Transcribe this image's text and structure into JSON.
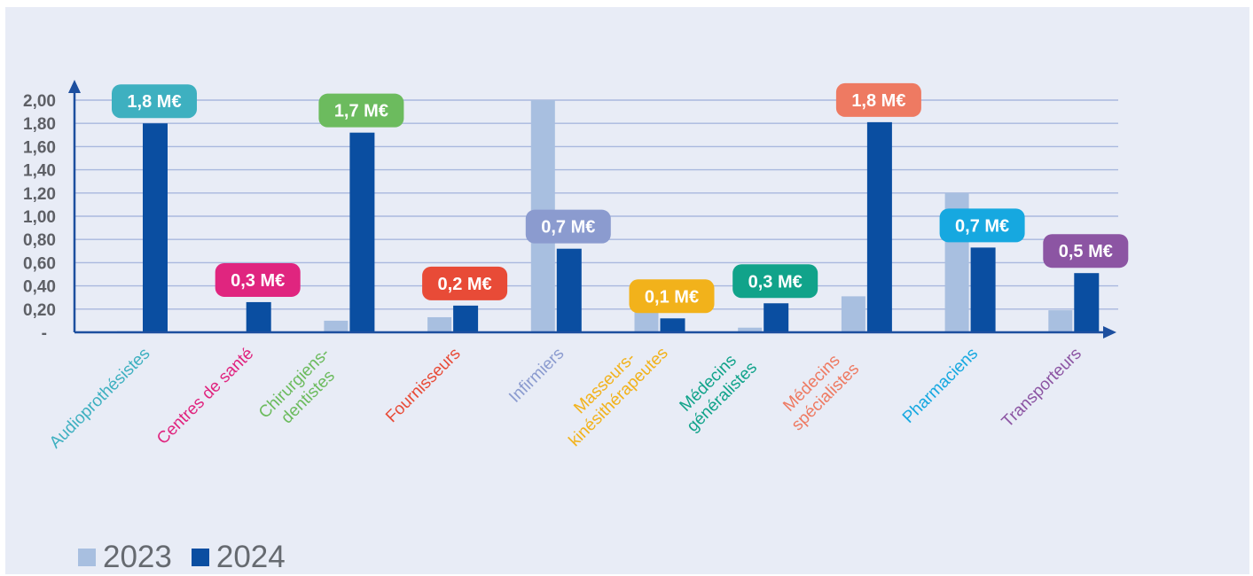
{
  "chart_data": {
    "type": "bar",
    "categories": [
      "Audioprothésistes",
      "Centres de santé",
      "Chirurgiens-dentistes",
      "Fournisseurs",
      "Infirmiers",
      "Masseurs-kinésithérapeutes",
      "Médecins généralistes",
      "Médecins spécialistes",
      "Pharmaciens",
      "Transporteurs"
    ],
    "category_lines": [
      [
        "Audioprothésistes"
      ],
      [
        "Centres de santé"
      ],
      [
        "Chirurgiens-",
        "dentistes"
      ],
      [
        "Fournisseurs"
      ],
      [
        "Infirmiers"
      ],
      [
        "Masseurs-",
        "kinésithérapeutes"
      ],
      [
        "Médecins",
        "généralistes"
      ],
      [
        "Médecins",
        "spécialistes"
      ],
      [
        "Pharmaciens"
      ],
      [
        "Transporteurs"
      ]
    ],
    "category_colors": [
      "#3eb0c0",
      "#e0257f",
      "#6cbb5e",
      "#e84b37",
      "#8b9bcf",
      "#f2b21b",
      "#11a38a",
      "#ee7a62",
      "#16a8e0",
      "#8c55a3"
    ],
    "series": [
      {
        "name": "2023",
        "color": "#a8bfe0",
        "values": [
          0.01,
          0.0,
          0.1,
          0.13,
          2.0,
          0.28,
          0.04,
          0.31,
          1.2,
          0.19
        ]
      },
      {
        "name": "2024",
        "color": "#0a4ea1",
        "values": [
          1.8,
          0.26,
          1.72,
          0.23,
          0.72,
          0.12,
          0.25,
          1.81,
          0.73,
          0.51
        ]
      }
    ],
    "data_labels": [
      "1,8  M€",
      "0,3  M€",
      "1,7  M€",
      "0,2  M€",
      "0,7  M€",
      "0,1  M€",
      "0,3  M€",
      "1,8  M€",
      "0,7  M€",
      "0,5  M€"
    ],
    "y_ticks": [
      "-",
      "0,20",
      "0,40",
      "0,60",
      "0,80",
      "1,00",
      "1,20",
      "1,40",
      "1,60",
      "1,80",
      "2,00"
    ],
    "ylim": [
      0,
      2.0
    ],
    "grid": true,
    "legend_position": "bottom-left"
  }
}
